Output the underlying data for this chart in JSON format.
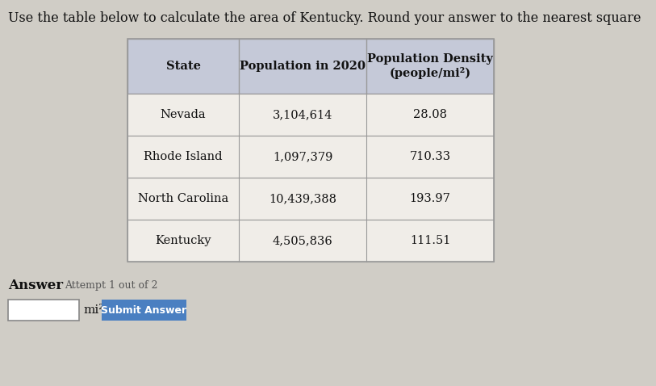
{
  "title": "Use the table below to calculate the area of Kentucky. Round your answer to the nearest square ",
  "headers": [
    "State",
    "Population in 2020",
    "Population Density\n(people/mi²)"
  ],
  "rows": [
    [
      "Nevada",
      "3,104,614",
      "28.08"
    ],
    [
      "Rhode Island",
      "1,097,379",
      "710.33"
    ],
    [
      "North Carolina",
      "10,439,388",
      "193.97"
    ],
    [
      "Kentucky",
      "4,505,836",
      "111.51"
    ]
  ],
  "answer_label": "Answer",
  "attempt_label": "Attempt 1 out of 2",
  "unit_label": "mi²",
  "submit_button": "Submit Answer",
  "header_bg": "#c5c9d8",
  "row_bg": "#f0ede8",
  "table_border": "#999999",
  "header_font_size": 10.5,
  "cell_font_size": 10.5,
  "title_font_size": 11.5,
  "submit_btn_color": "#4a7fc1",
  "submit_btn_text_color": "#ffffff",
  "answer_box_color": "#ffffff",
  "page_bg": "#d0cdc6"
}
